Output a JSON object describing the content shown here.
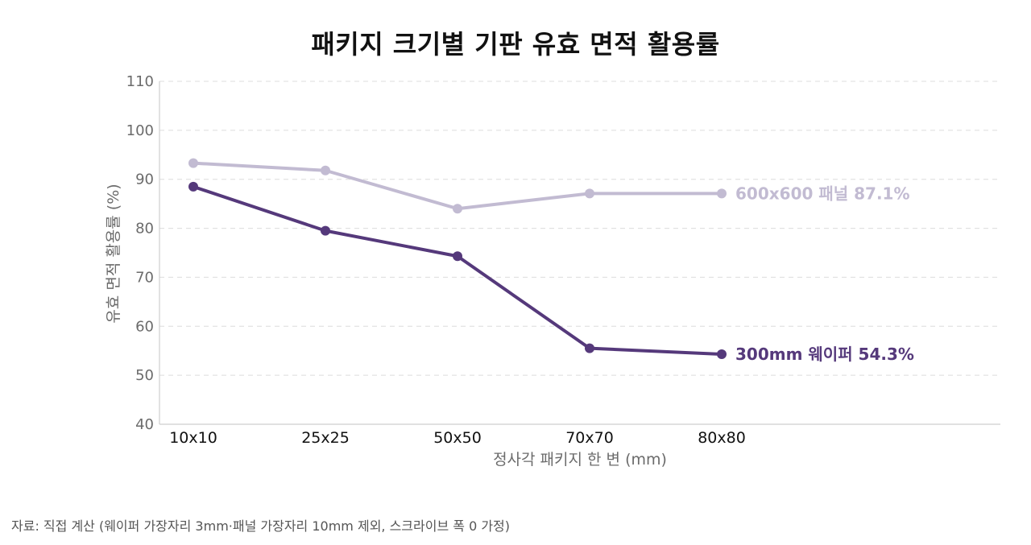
{
  "chart_data": {
    "type": "line",
    "title": "패키지 크기별 기판 유효 면적 활용률",
    "xlabel": "정사각 패키지 한 변 (mm)",
    "ylabel": "유효 면적 활용률 (%)",
    "categories": [
      "10x10",
      "25x25",
      "50x50",
      "70x70",
      "80x80"
    ],
    "ylim": [
      40,
      110
    ],
    "yticks": [
      40,
      50,
      60,
      70,
      80,
      90,
      100,
      110
    ],
    "grid": true,
    "series": [
      {
        "name": "600x600 패널",
        "values": [
          93.3,
          91.8,
          84.0,
          87.1,
          87.1
        ],
        "color": "#c2bbd2",
        "end_label": "600x600 패널  87.1%"
      },
      {
        "name": "300mm 웨이퍼",
        "values": [
          88.5,
          79.5,
          74.3,
          55.5,
          54.3
        ],
        "color": "#55397b",
        "end_label": "300mm 웨이퍼  54.3%"
      }
    ]
  },
  "source_note": "자료: 직접 계산 (웨이퍼 가장자리 3mm·패널 가장자리 10mm 제외, 스크라이브 폭 0 가정)"
}
